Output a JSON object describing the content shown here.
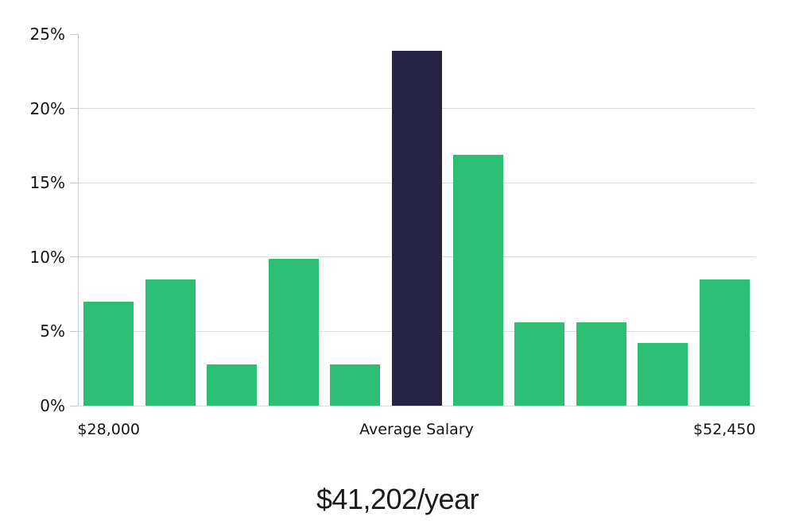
{
  "chart_data": {
    "type": "bar",
    "title": "$41,202/year",
    "xlabel": "",
    "ylabel": "",
    "ylim": [
      0,
      25
    ],
    "grid": "horizontal",
    "legend": "none",
    "yticks": [
      {
        "value": 0,
        "label": "0%",
        "gridline": true
      },
      {
        "value": 5,
        "label": "5%",
        "gridline": true
      },
      {
        "value": 10,
        "label": "10%",
        "gridline": true
      },
      {
        "value": 15,
        "label": "15%",
        "gridline": true
      },
      {
        "value": 20,
        "label": "20%",
        "gridline": true
      },
      {
        "value": 25,
        "label": "25%",
        "gridline": false
      }
    ],
    "values": [
      7.0,
      8.5,
      2.8,
      9.9,
      2.8,
      23.9,
      16.9,
      5.6,
      5.6,
      4.2,
      8.5
    ],
    "highlight_index": 5,
    "xticks": [
      {
        "slot": 0,
        "label": "$28,000"
      },
      {
        "slot": 5,
        "label": "Average Salary"
      },
      {
        "slot": 10,
        "label": "$52,450"
      }
    ],
    "colors": {
      "bar": "#2DBE76",
      "highlight_bar": "#262345",
      "gridline": "#DBDBDB",
      "axis": "#C9C9C9",
      "tick_text": "#141414",
      "title_text": "#1B1B1B"
    }
  }
}
